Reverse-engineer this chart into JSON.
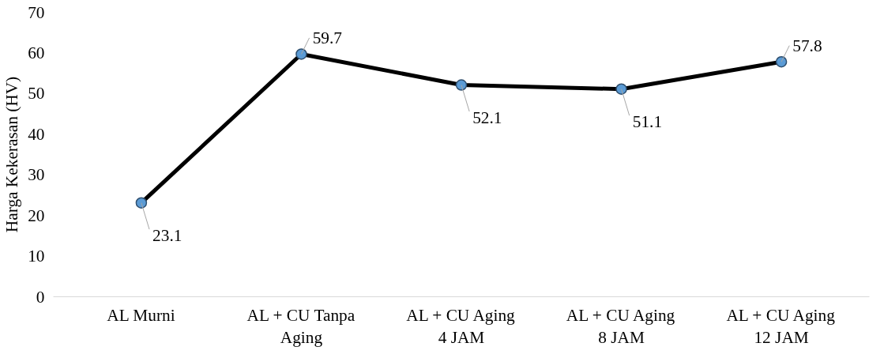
{
  "chart_data": {
    "type": "line",
    "ylabel": "Harga Kekerasan (HV)",
    "categories": [
      "AL Murni",
      "AL + CU Tanpa\nAging",
      "AL + CU Aging\n4 JAM",
      "AL + CU Aging\n8 JAM",
      "AL + CU Aging\n12 JAM"
    ],
    "series": [
      {
        "color": "#000000",
        "values": [
          23.1,
          59.7,
          52.1,
          51.1,
          57.8
        ]
      }
    ],
    "marker": "circle",
    "ylim": [
      0,
      70
    ],
    "yticks": [
      0,
      10,
      20,
      30,
      40,
      50,
      60,
      70
    ],
    "grid": false,
    "data_labels": true
  }
}
